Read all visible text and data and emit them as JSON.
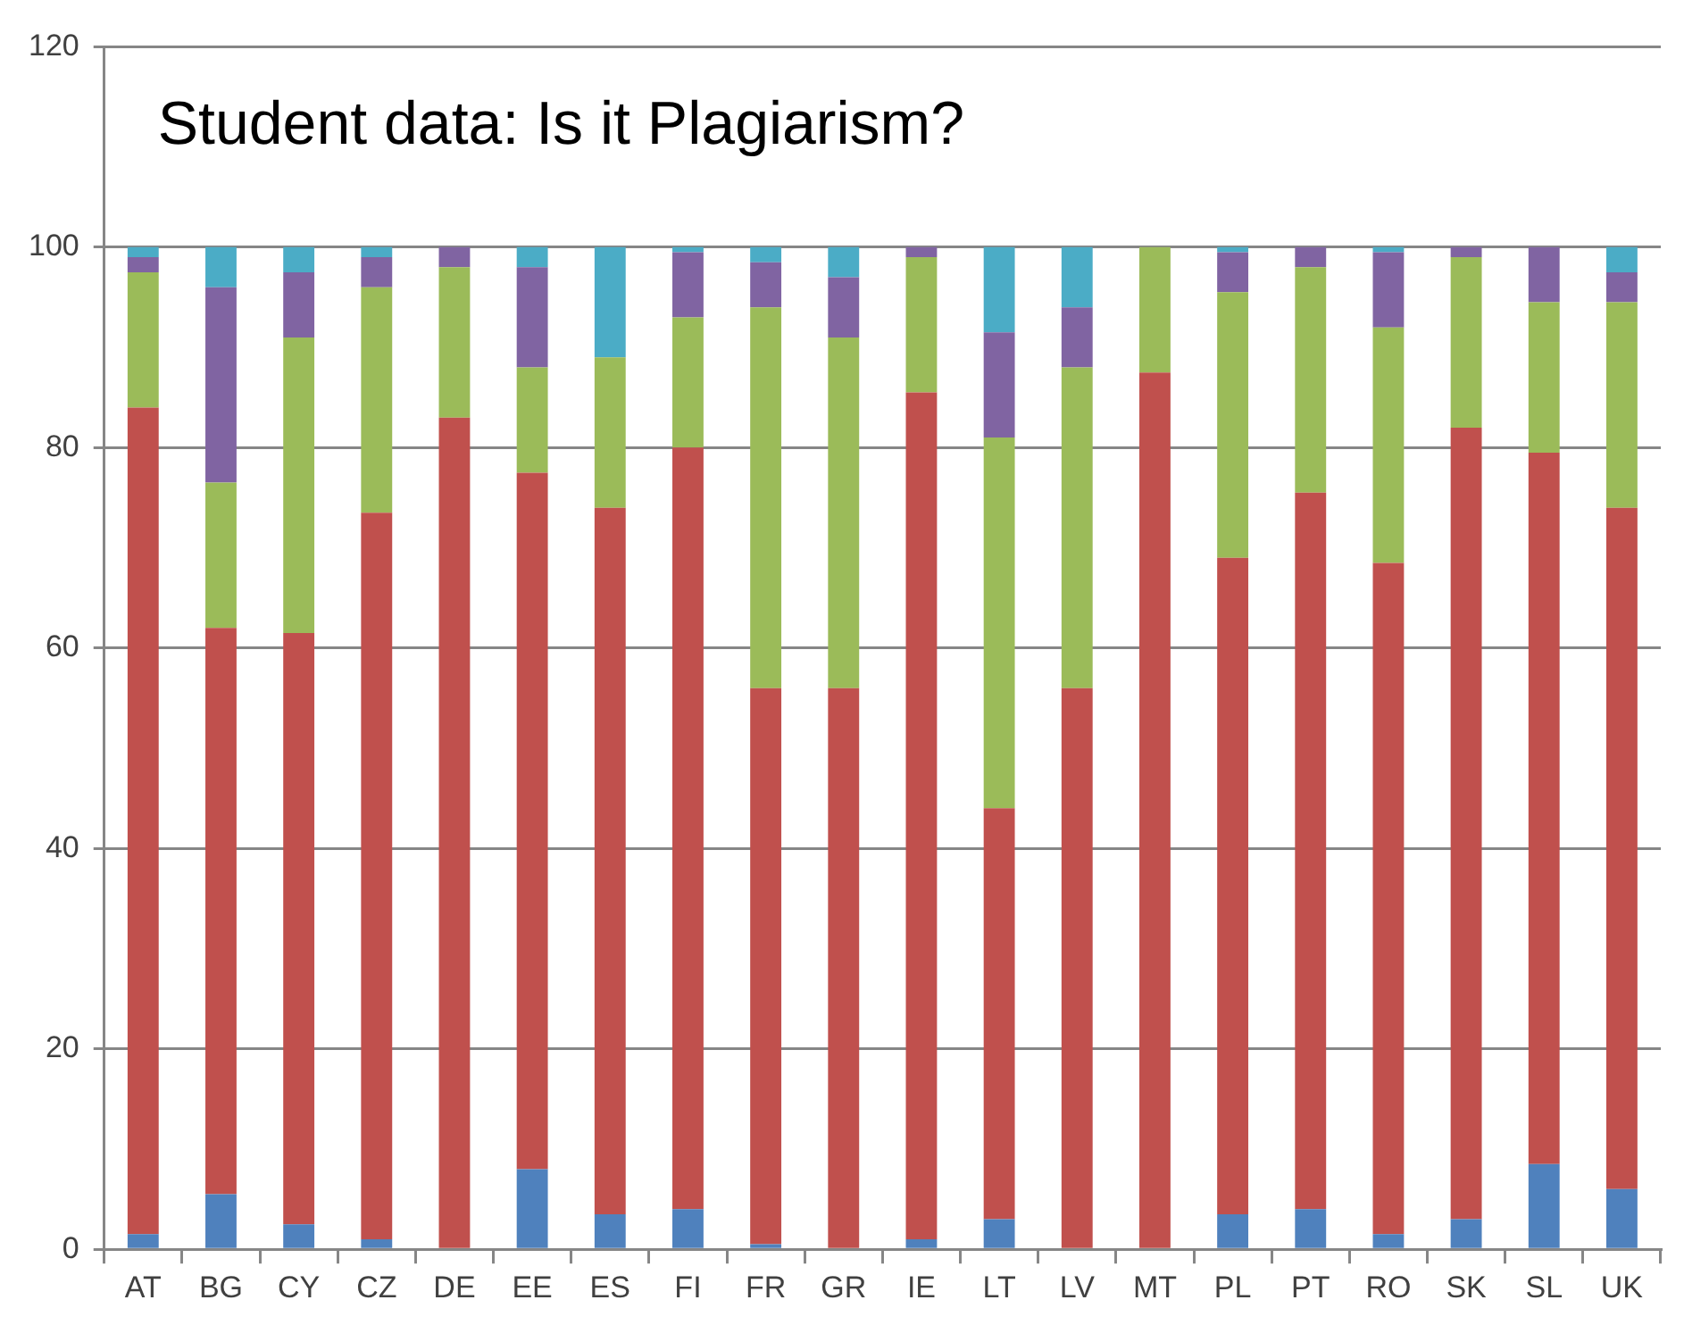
{
  "chart_data": {
    "type": "bar",
    "title": "Student data: Is it Plagiarism?",
    "stacked": true,
    "grid": "y",
    "legend": false,
    "categories": [
      "AT",
      "BG",
      "CY",
      "CZ",
      "DE",
      "EE",
      "ES",
      "FI",
      "FR",
      "GR",
      "IE",
      "LT",
      "LV",
      "MT",
      "PL",
      "PT",
      "RO",
      "SK",
      "SL",
      "UK"
    ],
    "ylim": [
      0,
      120
    ],
    "yticks": [
      0,
      20,
      40,
      60,
      80,
      100,
      120
    ],
    "series": [
      {
        "color": "#4f81bd",
        "values": [
          1.5,
          5.5,
          2.5,
          1,
          0,
          8,
          3.5,
          4,
          0.5,
          0,
          1,
          3,
          0,
          0,
          3.5,
          4,
          1.5,
          3,
          8.5,
          6
        ]
      },
      {
        "color": "#c0504d",
        "values": [
          82.5,
          56.5,
          59,
          72.5,
          83,
          69.5,
          70.5,
          76,
          55.5,
          56,
          84.5,
          41,
          56,
          87.5,
          65.5,
          71.5,
          67,
          79,
          71,
          68
        ]
      },
      {
        "color": "#9bbb59",
        "values": [
          13.5,
          14.5,
          29.5,
          22.5,
          15,
          10.5,
          15,
          13,
          38,
          35,
          13.5,
          37,
          32,
          12.5,
          26.5,
          22.5,
          23.5,
          17,
          15,
          20.5
        ]
      },
      {
        "color": "#8064a2",
        "values": [
          1.5,
          19.5,
          6.5,
          3,
          2,
          10,
          0,
          6.5,
          4.5,
          6,
          1,
          10.5,
          6,
          0,
          4,
          2,
          7.5,
          1,
          5.5,
          3
        ]
      },
      {
        "color": "#4bacc6",
        "values": [
          1,
          4,
          2.5,
          1,
          0,
          2,
          11,
          0.5,
          1.5,
          3,
          0,
          8.5,
          6,
          0,
          0.5,
          0,
          0.5,
          0,
          0,
          2.5
        ]
      }
    ]
  }
}
